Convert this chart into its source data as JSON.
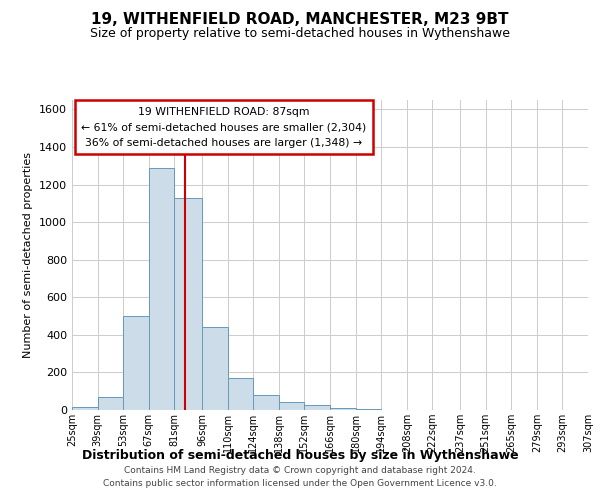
{
  "title": "19, WITHENFIELD ROAD, MANCHESTER, M23 9BT",
  "subtitle": "Size of property relative to semi-detached houses in Wythenshawe",
  "xlabel": "Distribution of semi-detached houses by size in Wythenshawe",
  "ylabel": "Number of semi-detached properties",
  "footer_line1": "Contains HM Land Registry data © Crown copyright and database right 2024.",
  "footer_line2": "Contains public sector information licensed under the Open Government Licence v3.0.",
  "annotation_title": "19 WITHENFIELD ROAD: 87sqm",
  "annotation_line1": "← 61% of semi-detached houses are smaller (2,304)",
  "annotation_line2": "36% of semi-detached houses are larger (1,348) →",
  "property_value": 87,
  "bar_color": "#ccdce8",
  "bar_edge_color": "#6699bb",
  "vline_color": "#cc0000",
  "annotation_box_edge": "#cc0000",
  "annotation_box_face": "#ffffff",
  "grid_color": "#cccccc",
  "bin_edges": [
    25,
    39,
    53,
    67,
    81,
    96,
    110,
    124,
    138,
    152,
    166,
    180,
    194,
    208,
    222,
    237,
    251,
    265,
    279,
    293,
    307
  ],
  "bin_labels": [
    "25sqm",
    "39sqm",
    "53sqm",
    "67sqm",
    "81sqm",
    "96sqm",
    "110sqm",
    "124sqm",
    "138sqm",
    "152sqm",
    "166sqm",
    "180sqm",
    "194sqm",
    "208sqm",
    "222sqm",
    "237sqm",
    "251sqm",
    "265sqm",
    "279sqm",
    "293sqm",
    "307sqm"
  ],
  "counts": [
    15,
    70,
    500,
    1290,
    1130,
    440,
    170,
    80,
    45,
    25,
    10,
    5,
    2,
    1,
    0,
    0,
    0,
    0,
    0,
    0
  ],
  "ylim": [
    0,
    1650
  ],
  "yticks": [
    0,
    200,
    400,
    600,
    800,
    1000,
    1200,
    1400,
    1600
  ]
}
